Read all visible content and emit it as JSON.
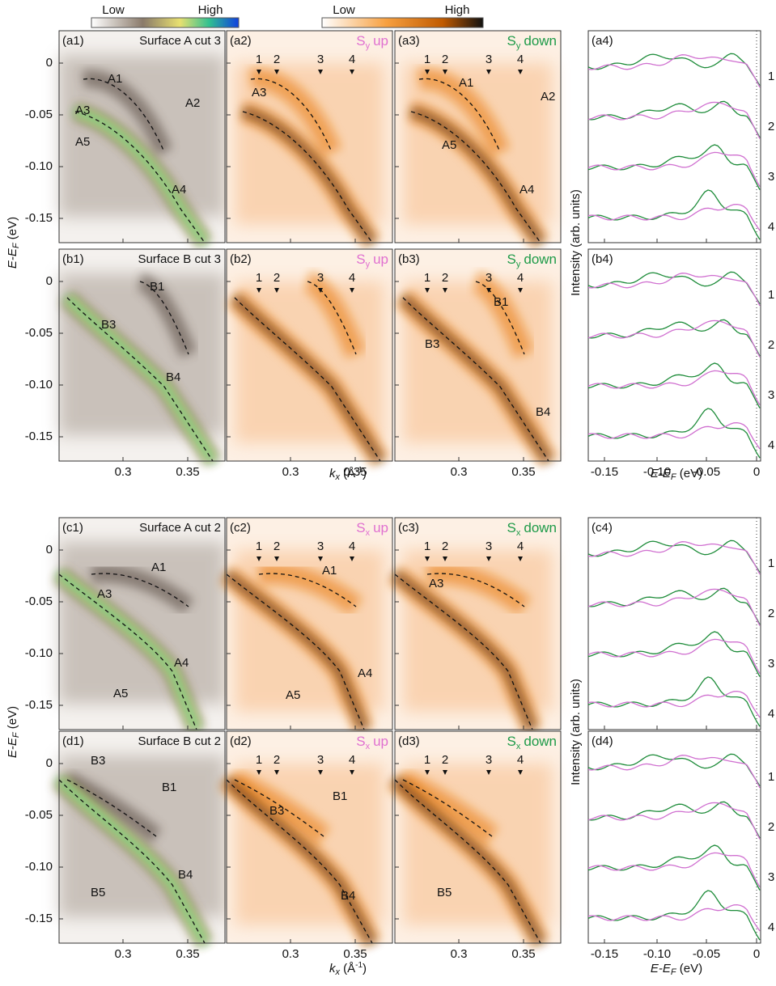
{
  "colorbars": [
    {
      "low": "Low",
      "high": "High"
    },
    {
      "low": "Low",
      "high": "High"
    }
  ],
  "axes": {
    "energy_title": {
      "main": "E-E",
      "sub": "F",
      "unit": " (eV)"
    },
    "k_title": {
      "main": "k",
      "sub": "x",
      "unit": " (Å",
      "sup": "-1",
      "close": ")"
    },
    "intensity_title": "Intensity (arb. units)",
    "y_ticks": [
      "0",
      "-0.05",
      "-0.10",
      "-0.15"
    ],
    "k_ticks": [
      "0.3",
      "0.35"
    ],
    "e_ticks": [
      "-0.15",
      "-0.10",
      "-0.05",
      "0"
    ]
  },
  "rows": [
    {
      "panels": [
        {
          "label": "(a1)",
          "title": "Surface A cut 3",
          "bands": [
            "A1",
            "A2",
            "A3",
            "A5",
            "A4"
          ]
        },
        {
          "label": "(a2)",
          "spin": {
            "s": "S",
            "axis": "y",
            "dir": "up"
          },
          "cuts": [
            "1",
            "2",
            "3",
            "4"
          ],
          "bands": [
            "A3"
          ]
        },
        {
          "label": "(a3)",
          "spin": {
            "s": "S",
            "axis": "y",
            "dir": "down"
          },
          "cuts": [
            "1",
            "2",
            "3",
            "4"
          ],
          "bands": [
            "A1",
            "A2",
            "A5",
            "A4"
          ]
        },
        {
          "label": "(a4)",
          "curves": [
            "1",
            "2",
            "3",
            "4"
          ]
        }
      ]
    },
    {
      "panels": [
        {
          "label": "(b1)",
          "title": "Surface B cut 3",
          "bands": [
            "B1",
            "B3",
            "B4"
          ]
        },
        {
          "label": "(b2)",
          "spin": {
            "s": "S",
            "axis": "y",
            "dir": "up"
          },
          "cuts": [
            "1",
            "2",
            "3",
            "4"
          ],
          "bands": []
        },
        {
          "label": "(b3)",
          "spin": {
            "s": "S",
            "axis": "y",
            "dir": "down"
          },
          "cuts": [
            "1",
            "2",
            "3",
            "4"
          ],
          "bands": [
            "B1",
            "B3",
            "B4"
          ]
        },
        {
          "label": "(b4)",
          "curves": [
            "1",
            "2",
            "3",
            "4"
          ]
        }
      ]
    },
    {
      "panels": [
        {
          "label": "(c1)",
          "title": "Surface A cut 2",
          "bands": [
            "A1",
            "A3",
            "A4",
            "A5"
          ]
        },
        {
          "label": "(c2)",
          "spin": {
            "s": "S",
            "axis": "x",
            "dir": "up"
          },
          "cuts": [
            "1",
            "2",
            "3",
            "4"
          ],
          "bands": [
            "A1",
            "A5",
            "A4"
          ]
        },
        {
          "label": "(c3)",
          "spin": {
            "s": "S",
            "axis": "x",
            "dir": "down"
          },
          "cuts": [
            "1",
            "2",
            "3",
            "4"
          ],
          "bands": [
            "A3"
          ]
        },
        {
          "label": "(c4)",
          "curves": [
            "1",
            "2",
            "3",
            "4"
          ]
        }
      ]
    },
    {
      "panels": [
        {
          "label": "(d1)",
          "title": "Surface B cut 2",
          "bands": [
            "B1",
            "B3",
            "B4",
            "B5"
          ]
        },
        {
          "label": "(d2)",
          "spin": {
            "s": "S",
            "axis": "x",
            "dir": "up"
          },
          "cuts": [
            "1",
            "2",
            "3",
            "4"
          ],
          "bands": [
            "B1",
            "B3",
            "B4"
          ]
        },
        {
          "label": "(d3)",
          "spin": {
            "s": "S",
            "axis": "x",
            "dir": "down"
          },
          "cuts": [
            "1",
            "2",
            "3",
            "4"
          ],
          "bands": [
            "B5"
          ]
        },
        {
          "label": "(d4)",
          "curves": [
            "1",
            "2",
            "3",
            "4"
          ]
        }
      ]
    }
  ]
}
